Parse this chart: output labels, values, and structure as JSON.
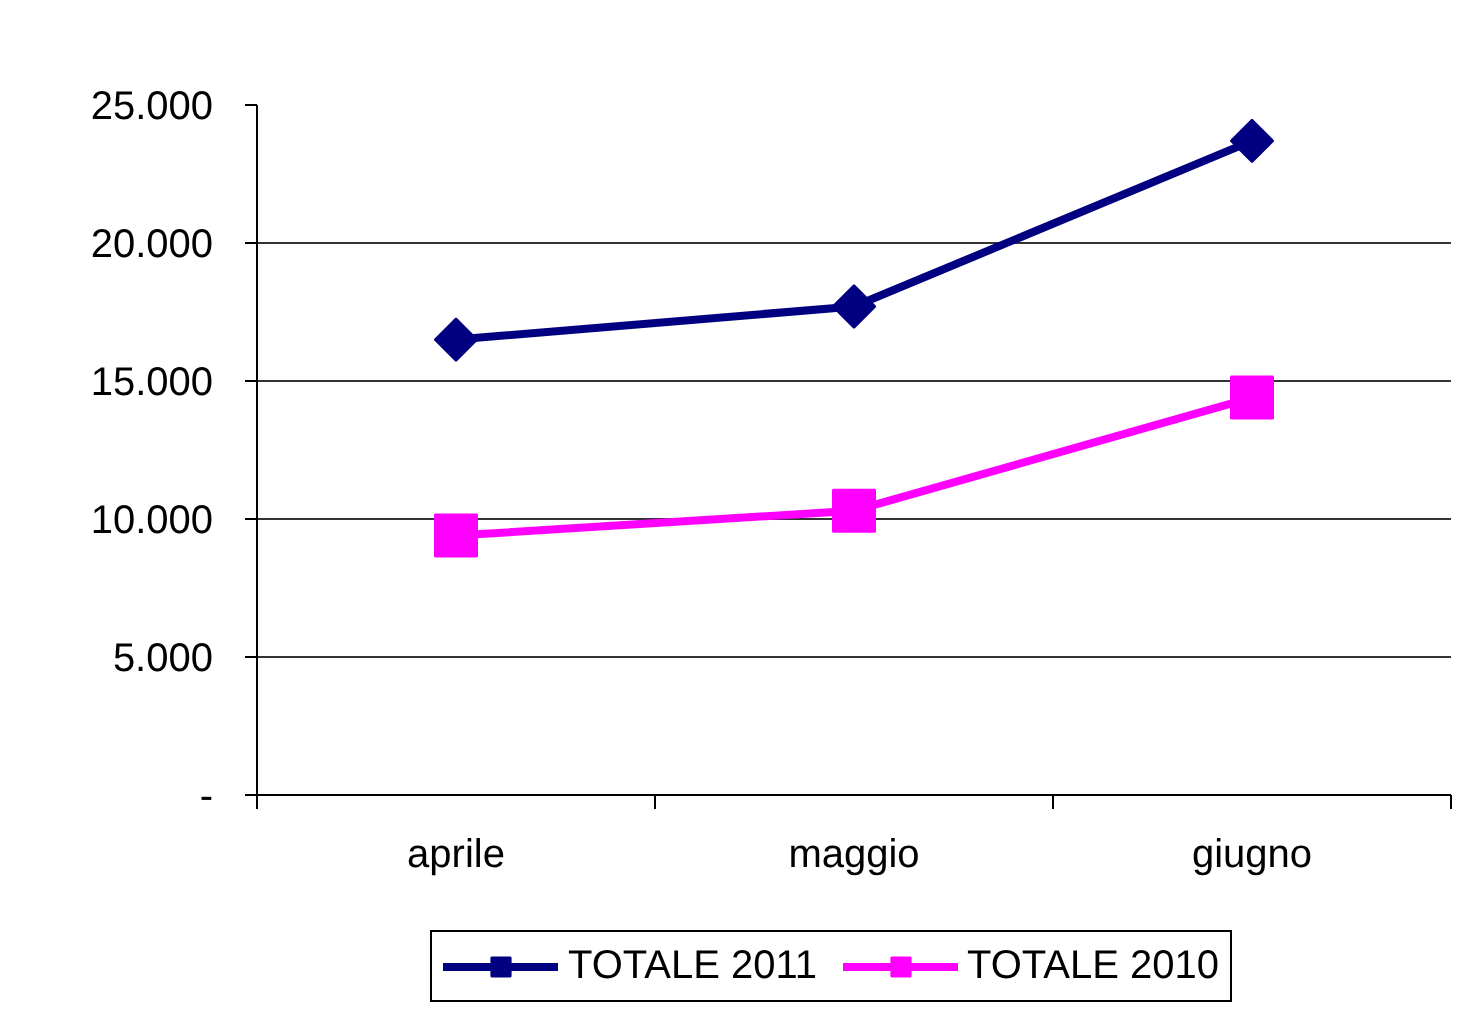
{
  "chart_data": {
    "type": "line",
    "categories": [
      "aprile",
      "maggio",
      "giugno"
    ],
    "series": [
      {
        "name": "TOTALE 2011",
        "color": "#000080",
        "marker": "diamond",
        "values": [
          16500,
          17700,
          23700
        ]
      },
      {
        "name": "TOTALE 2010",
        "color": "#ff00ff",
        "marker": "square",
        "values": [
          9400,
          10300,
          14400
        ]
      }
    ],
    "ylim": [
      0,
      25000
    ],
    "yticks": [
      {
        "value": 0,
        "label": "-"
      },
      {
        "value": 5000,
        "label": "5.000"
      },
      {
        "value": 10000,
        "label": "10.000"
      },
      {
        "value": 15000,
        "label": "15.000"
      },
      {
        "value": 20000,
        "label": "20.000"
      },
      {
        "value": 25000,
        "label": "25.000"
      }
    ],
    "grid": "y",
    "legend": "bottom",
    "line_style": "solid"
  }
}
